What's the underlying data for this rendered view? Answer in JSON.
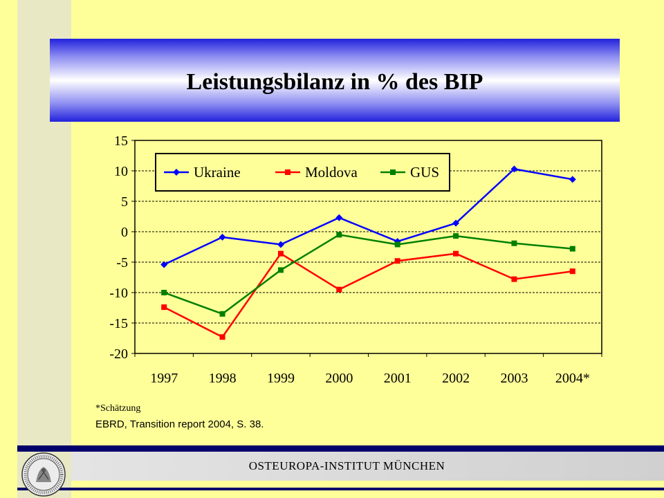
{
  "title": "Leistungsbilanz in % des BIP",
  "footnote": "*Schätzung",
  "source": "EBRD, Transition report 2004, S. 38.",
  "footer": {
    "institute": "OSTEUROPA-INSTITUT  MÜNCHEN"
  },
  "seal": {
    "text": "OSTEUROPA-INSTITUT MÜNCHEN"
  },
  "chart_data": {
    "type": "line",
    "title": "",
    "xlabel": "",
    "ylabel": "",
    "categories": [
      "1997",
      "1998",
      "1999",
      "2000",
      "2001",
      "2002",
      "2003",
      "2004*"
    ],
    "ylim": [
      -20,
      15
    ],
    "yticks": [
      "15",
      "10",
      "5",
      "0",
      "-5",
      "-10",
      "-15",
      "-20"
    ],
    "ytick_values": [
      15,
      10,
      5,
      0,
      -5,
      -10,
      -15,
      -20
    ],
    "grid": "horizontal dashed",
    "legend_position": "top-left inside",
    "series": [
      {
        "name": "Ukraine",
        "color": "#0000ff",
        "marker": "diamond",
        "values": [
          -5.4,
          -0.9,
          -2.1,
          2.3,
          -1.6,
          1.4,
          10.3,
          8.6
        ]
      },
      {
        "name": "Moldova",
        "color": "#ff0000",
        "marker": "square",
        "values": [
          -12.4,
          -17.3,
          -3.6,
          -9.5,
          -4.8,
          -3.6,
          -7.8,
          -6.5
        ]
      },
      {
        "name": "GUS",
        "color": "#008000",
        "marker": "square",
        "values": [
          -10.0,
          -13.5,
          -6.3,
          -0.5,
          -2.1,
          -0.7,
          -1.9,
          -2.8
        ]
      }
    ]
  }
}
